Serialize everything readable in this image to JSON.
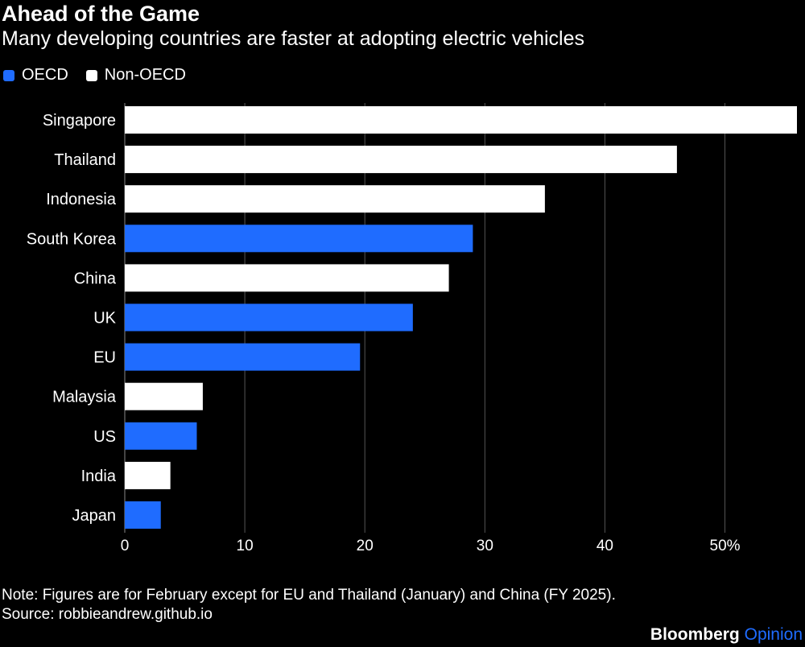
{
  "colors": {
    "background": "#000000",
    "oecd": "#1F6CFF",
    "non_oecd": "#FFFFFF",
    "grid": "#555555",
    "text": "#FFFFFF",
    "brand_accent": "#1F6CFF"
  },
  "chart_data": {
    "type": "bar",
    "orientation": "horizontal",
    "title": "Ahead of the Game",
    "subtitle": "Many developing countries are faster at adopting electric vehicles",
    "legend": [
      {
        "name": "OECD",
        "group": "oecd",
        "color": "#1F6CFF"
      },
      {
        "name": "Non-OECD",
        "group": "non_oecd",
        "color": "#FFFFFF"
      }
    ],
    "legend_position": "top-left",
    "categories": [
      "Singapore",
      "Thailand",
      "Indonesia",
      "South Korea",
      "China",
      "UK",
      "EU",
      "Malaysia",
      "US",
      "India",
      "Japan"
    ],
    "values": [
      56,
      46,
      35,
      29,
      27,
      24,
      19.6,
      6.5,
      6,
      3.8,
      3
    ],
    "groups": [
      "non_oecd",
      "non_oecd",
      "non_oecd",
      "oecd",
      "non_oecd",
      "oecd",
      "oecd",
      "non_oecd",
      "oecd",
      "non_oecd",
      "oecd"
    ],
    "xlim": [
      0,
      56
    ],
    "xticks": [
      0,
      10,
      20,
      30,
      40,
      50
    ],
    "xtick_labels": [
      "0",
      "10",
      "20",
      "30",
      "40",
      "50%"
    ],
    "xlabel": "",
    "ylabel": "",
    "grid": true
  },
  "footer": {
    "note": "Note: Figures are for February except for EU and Thailand (January) and China (FY 2025).",
    "source": "Source: robbieandrew.github.io",
    "brand": "Bloomberg",
    "brand_suffix": "Opinion"
  }
}
